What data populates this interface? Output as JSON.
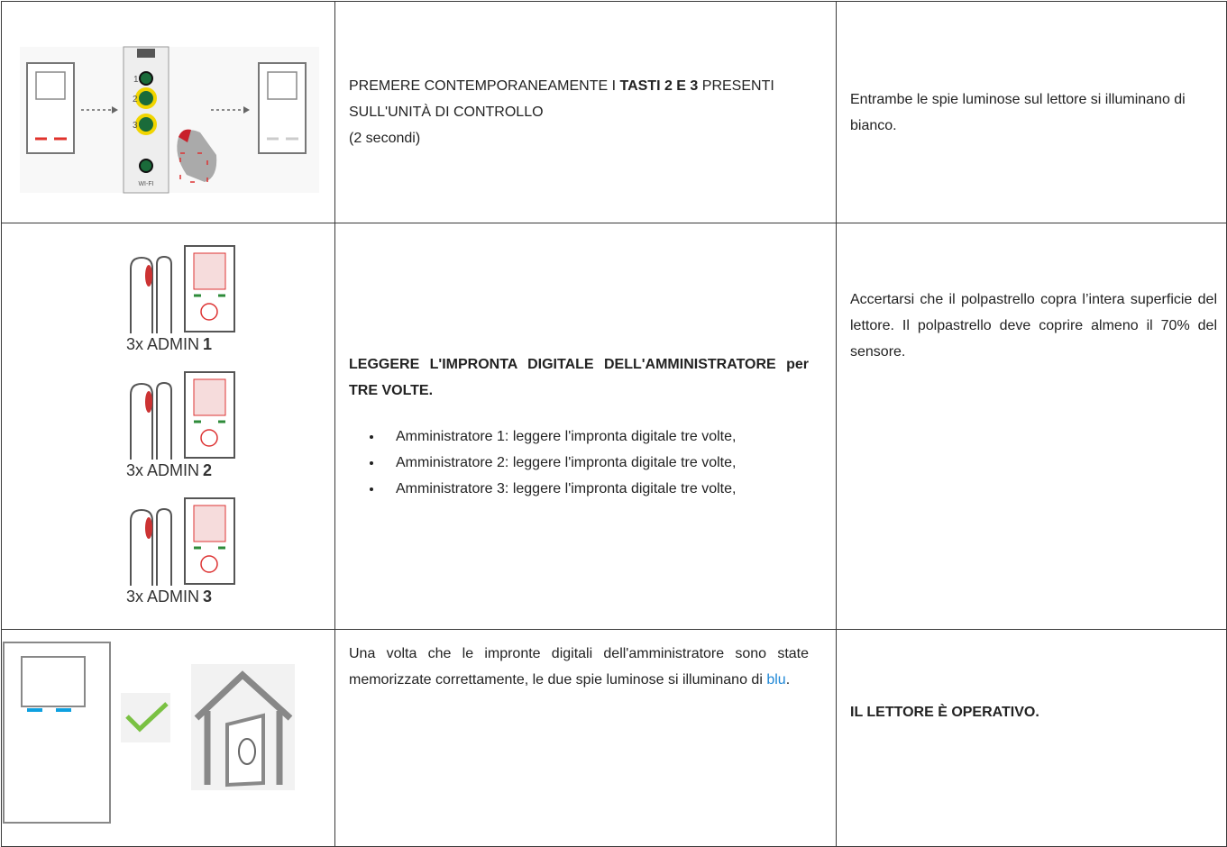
{
  "table": {
    "rows": [
      {
        "image_labels": [
          "1",
          "2",
          "3",
          "WI-FI"
        ],
        "instruction": {
          "text_before": "PREMERE CONTEMPORANEAMENTE I ",
          "bold": "TASTI 2 E 3",
          "text_after": " PRESENTI SULL'UNITÀ DI CONTROLLO",
          "note": "(2 secondi)"
        },
        "result": "Entrambe le spie luminose sul lettore si illuminano di bianco."
      },
      {
        "image_labels": [
          {
            "prefix": "3x ADMIN",
            "number": "1"
          },
          {
            "prefix": "3x ADMIN",
            "number": "2"
          },
          {
            "prefix": "3x ADMIN",
            "number": "3"
          }
        ],
        "instruction": {
          "heading": "LEGGERE L'IMPRONTA DIGITALE DELL'AMMINISTRATORE per TRE VOLTE.",
          "bullets": [
            "Amministratore 1: leggere l'impronta digitale tre volte,",
            "Amministratore 2: leggere l'impronta digitale tre volte,",
            "Amministratore 3: leggere l'impronta digitale tre volte,"
          ]
        },
        "result": "Accertarsi che il polpastrello copra l’intera superficie del lettore. Il polpastrello deve coprire almeno il 70% del sensore."
      },
      {
        "instruction": {
          "text_before": "Una volta che le impronte digitali dell'amministratore sono state memorizzate correttamente, le due spie luminose si illuminano di ",
          "link": "blu",
          "text_after": "."
        },
        "result": "IL LETTORE È OPERATIVO."
      }
    ]
  }
}
